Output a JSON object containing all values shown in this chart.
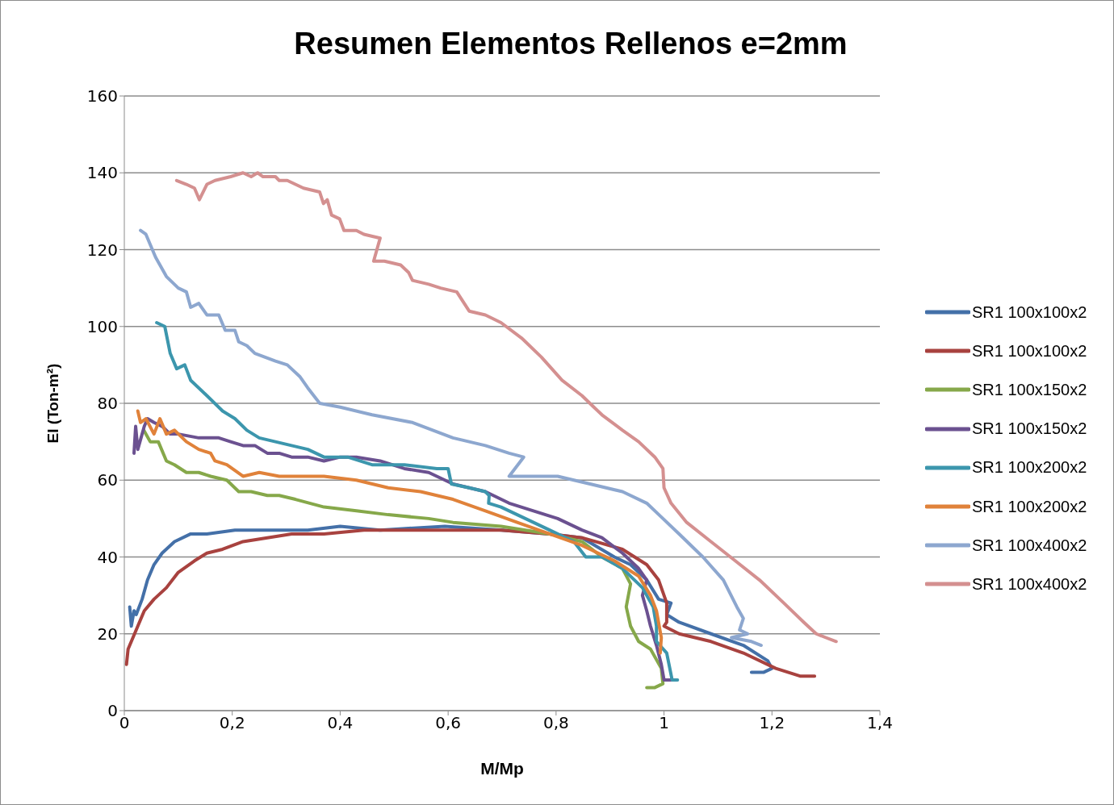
{
  "chart_data": {
    "type": "line",
    "title": "Resumen Elementos Rellenos e=2mm",
    "xlabel": "M/Mp",
    "ylabel": "EI (Ton-m²)",
    "xlim": [
      0,
      1.4
    ],
    "ylim": [
      0,
      160
    ],
    "xticks": [
      0,
      {
        "value": 0.2,
        "label": "0,2"
      },
      {
        "value": 0.4,
        "label": "0,4"
      },
      {
        "value": 0.6,
        "label": "0,6"
      },
      {
        "value": 0.8,
        "label": "0,8"
      },
      1,
      {
        "value": 1.2,
        "label": "1,2"
      },
      {
        "value": 1.4,
        "label": "1,4"
      }
    ],
    "yticks": [
      0,
      20,
      40,
      60,
      80,
      100,
      120,
      140,
      160
    ],
    "grid": "y",
    "legend": "right",
    "marker": "none",
    "line_style": "solid",
    "series": [
      {
        "name": "SR1 100x100x2",
        "color": "#4470a8",
        "x": [
          0.01,
          0.013,
          0.018,
          0.022,
          0.033,
          0.043,
          0.055,
          0.07,
          0.093,
          0.123,
          0.153,
          0.205,
          0.265,
          0.34,
          0.4,
          0.474,
          0.594,
          0.7,
          0.788,
          0.848,
          0.908,
          0.938,
          0.968,
          0.99,
          1.013,
          1.005,
          1.028,
          1.087,
          1.147,
          1.192,
          1.2,
          1.185,
          1.162
        ],
        "values": [
          27,
          22,
          26,
          25,
          29,
          34,
          38,
          41,
          44,
          46,
          46,
          47,
          47,
          47,
          48,
          47,
          48,
          47,
          46,
          45,
          40,
          38,
          34,
          29,
          28,
          25,
          23,
          20,
          17,
          13,
          11,
          10,
          10
        ]
      },
      {
        "name": "SR1 100x100x2",
        "color": "#a8423f",
        "x": [
          0.004,
          0.007,
          0.013,
          0.022,
          0.037,
          0.055,
          0.078,
          0.1,
          0.13,
          0.153,
          0.182,
          0.22,
          0.265,
          0.31,
          0.37,
          0.444,
          0.519,
          0.609,
          0.698,
          0.788,
          0.848,
          0.923,
          0.968,
          0.99,
          1.005,
          1.005,
          1.0,
          1.028,
          1.087,
          1.147,
          1.207,
          1.252,
          1.279
        ],
        "values": [
          12,
          16,
          18,
          21,
          26,
          29,
          32,
          36,
          39,
          41,
          42,
          44,
          45,
          46,
          46,
          47,
          47,
          47,
          47,
          46,
          45,
          42,
          38,
          34,
          28,
          23,
          22,
          20,
          18,
          15,
          11,
          9,
          9
        ]
      },
      {
        "name": "SR1 100x150x2",
        "color": "#86a84a",
        "x": [
          0.036,
          0.048,
          0.063,
          0.078,
          0.093,
          0.115,
          0.138,
          0.16,
          0.19,
          0.212,
          0.235,
          0.265,
          0.287,
          0.317,
          0.37,
          0.43,
          0.489,
          0.564,
          0.609,
          0.698,
          0.788,
          0.848,
          0.885,
          0.923,
          0.938,
          0.93,
          0.938,
          0.953,
          0.975,
          0.995,
          0.998,
          0.983,
          0.968
        ],
        "values": [
          73,
          70,
          70,
          65,
          64,
          62,
          62,
          61,
          60,
          57,
          57,
          56,
          56,
          55,
          53,
          52,
          51,
          50,
          49,
          48,
          46,
          44,
          40,
          37,
          33,
          27,
          22,
          18,
          16,
          11,
          7,
          6,
          6
        ]
      },
      {
        "name": "SR1 100x150x2",
        "color": "#6b5190",
        "x": [
          0.018,
          0.021,
          0.025,
          0.037,
          0.043,
          0.055,
          0.07,
          0.085,
          0.1,
          0.138,
          0.153,
          0.175,
          0.197,
          0.22,
          0.242,
          0.265,
          0.287,
          0.31,
          0.34,
          0.37,
          0.4,
          0.43,
          0.474,
          0.519,
          0.564,
          0.609,
          0.669,
          0.713,
          0.758,
          0.803,
          0.848,
          0.885,
          0.923,
          0.953,
          0.968,
          0.96,
          0.968,
          0.975,
          0.986,
          0.995,
          1.0,
          1.013
        ],
        "values": [
          67,
          74,
          68,
          74,
          76,
          75,
          74,
          72,
          72,
          71,
          71,
          71,
          70,
          69,
          69,
          67,
          67,
          66,
          66,
          65,
          66,
          66,
          65,
          63,
          62,
          59,
          57,
          54,
          52,
          50,
          47,
          45,
          41,
          37,
          34,
          30,
          26,
          22,
          17,
          12,
          8,
          8
        ]
      },
      {
        "name": "SR1 100x200x2",
        "color": "#3c96ad",
        "x": [
          0.06,
          0.075,
          0.085,
          0.097,
          0.112,
          0.123,
          0.153,
          0.182,
          0.205,
          0.227,
          0.25,
          0.28,
          0.31,
          0.34,
          0.37,
          0.414,
          0.459,
          0.519,
          0.579,
          0.6,
          0.606,
          0.639,
          0.669,
          0.676,
          0.675,
          0.698,
          0.743,
          0.788,
          0.833,
          0.855,
          0.885,
          0.923,
          0.96,
          0.98,
          0.986,
          0.986,
          1.005,
          1.015,
          1.025
        ],
        "values": [
          101,
          100,
          93,
          89,
          90,
          86,
          82,
          78,
          76,
          73,
          71,
          70,
          69,
          68,
          66,
          66,
          64,
          64,
          63,
          63,
          59,
          58,
          57,
          56,
          54,
          53,
          50,
          47,
          44,
          40,
          40,
          37,
          32,
          27,
          22,
          18,
          15,
          8,
          8
        ]
      },
      {
        "name": "SR1 100x200x2",
        "color": "#e0823a",
        "x": [
          0.025,
          0.03,
          0.04,
          0.055,
          0.066,
          0.078,
          0.093,
          0.115,
          0.138,
          0.16,
          0.168,
          0.19,
          0.22,
          0.25,
          0.287,
          0.37,
          0.43,
          0.489,
          0.549,
          0.609,
          0.669,
          0.728,
          0.788,
          0.848,
          0.908,
          0.953,
          0.975,
          0.986,
          0.995,
          0.993
        ],
        "values": [
          78,
          75,
          76,
          72,
          76,
          72,
          73,
          70,
          68,
          67,
          65,
          64,
          61,
          62,
          61,
          61,
          60,
          58,
          57,
          55,
          52,
          49,
          46,
          43,
          39,
          35,
          30,
          26,
          19,
          15
        ]
      },
      {
        "name": "SR1 100x400x2",
        "color": "#8da7cf",
        "x": [
          0.03,
          0.04,
          0.058,
          0.078,
          0.1,
          0.115,
          0.123,
          0.138,
          0.153,
          0.175,
          0.187,
          0.205,
          0.212,
          0.227,
          0.242,
          0.28,
          0.302,
          0.325,
          0.34,
          0.362,
          0.4,
          0.459,
          0.534,
          0.609,
          0.669,
          0.713,
          0.74,
          0.713,
          0.743,
          0.803,
          0.863,
          0.923,
          0.968,
          0.998,
          1.028,
          1.072,
          1.11,
          1.135,
          1.147,
          1.14,
          1.155,
          1.125,
          1.162,
          1.18
        ],
        "values": [
          125,
          124,
          118,
          113,
          110,
          109,
          105,
          106,
          103,
          103,
          99,
          99,
          96,
          95,
          93,
          91,
          90,
          87,
          84,
          80,
          79,
          77,
          75,
          71,
          69,
          67,
          66,
          61,
          61,
          61,
          59,
          57,
          54,
          50,
          46,
          40,
          34,
          27,
          24,
          21,
          20,
          19,
          18,
          17
        ]
      },
      {
        "name": "SR1 100x400x2",
        "color": "#d49090",
        "x": [
          0.097,
          0.115,
          0.13,
          0.139,
          0.153,
          0.168,
          0.197,
          0.22,
          0.235,
          0.247,
          0.257,
          0.28,
          0.287,
          0.302,
          0.317,
          0.332,
          0.362,
          0.369,
          0.376,
          0.384,
          0.399,
          0.407,
          0.43,
          0.444,
          0.474,
          0.462,
          0.482,
          0.512,
          0.527,
          0.534,
          0.564,
          0.586,
          0.616,
          0.639,
          0.669,
          0.698,
          0.736,
          0.773,
          0.811,
          0.848,
          0.87,
          0.885,
          0.923,
          0.953,
          0.983,
          0.998,
          1.0,
          1.013,
          1.042,
          1.087,
          1.132,
          1.177,
          1.222,
          1.259,
          1.282,
          1.3,
          1.319
        ],
        "values": [
          138,
          137,
          136,
          133,
          137,
          138,
          139,
          140,
          139,
          140,
          139,
          139,
          138,
          138,
          137,
          136,
          135,
          132,
          133,
          129,
          128,
          125,
          125,
          124,
          123,
          117,
          117,
          116,
          114,
          112,
          111,
          110,
          109,
          104,
          103,
          101,
          97,
          92,
          86,
          82,
          79,
          77,
          73,
          70,
          66,
          63,
          58,
          54,
          49,
          44,
          39,
          34,
          28,
          23,
          20,
          19,
          18
        ]
      }
    ]
  }
}
